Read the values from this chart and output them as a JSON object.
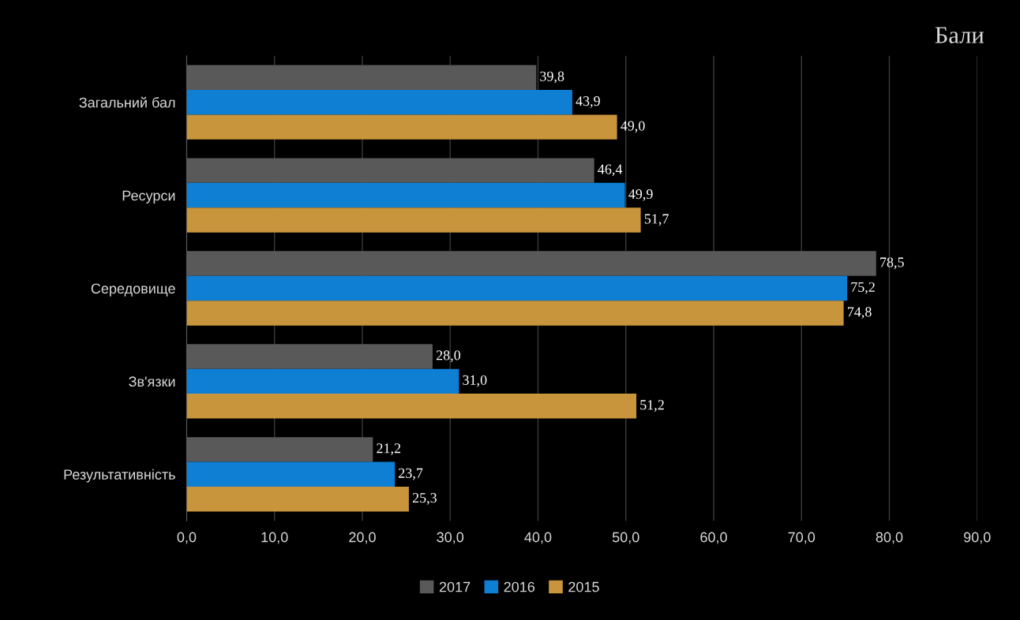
{
  "chart_data": {
    "type": "bar",
    "orientation": "horizontal",
    "title": "Бали",
    "categories": [
      "Загальний бал",
      "Ресурси",
      "Середовище",
      "Зв'язки",
      "Результативність"
    ],
    "series": [
      {
        "name": "2017",
        "color": "#595959",
        "values": [
          39.8,
          46.4,
          78.5,
          28.0,
          21.2
        ],
        "value_labels": [
          "39,8",
          "46,4",
          "78,5",
          "28,0",
          "21,2"
        ]
      },
      {
        "name": "2016",
        "color": "#0f7fd4",
        "values": [
          43.9,
          49.9,
          75.2,
          31.0,
          23.7
        ],
        "value_labels": [
          "43,9",
          "49,9",
          "75,2",
          "31,0",
          "23,7"
        ]
      },
      {
        "name": "2015",
        "color": "#c8943c",
        "values": [
          49.0,
          51.7,
          74.8,
          51.2,
          25.3
        ],
        "value_labels": [
          "49,0",
          "51,7",
          "74,8",
          "51,2",
          "25,3"
        ]
      }
    ],
    "xlim": [
      0,
      90
    ],
    "xticks": [
      {
        "value": 0,
        "label": "0,0"
      },
      {
        "value": 10,
        "label": "10,0"
      },
      {
        "value": 20,
        "label": "20,0"
      },
      {
        "value": 30,
        "label": "30,0"
      },
      {
        "value": 40,
        "label": "40,0"
      },
      {
        "value": 50,
        "label": "50,0"
      },
      {
        "value": 60,
        "label": "60,0"
      },
      {
        "value": 70,
        "label": "70,0"
      },
      {
        "value": 80,
        "label": "80,0"
      },
      {
        "value": 90,
        "label": "90,0"
      }
    ],
    "grid": "x",
    "legend": "bottom"
  }
}
